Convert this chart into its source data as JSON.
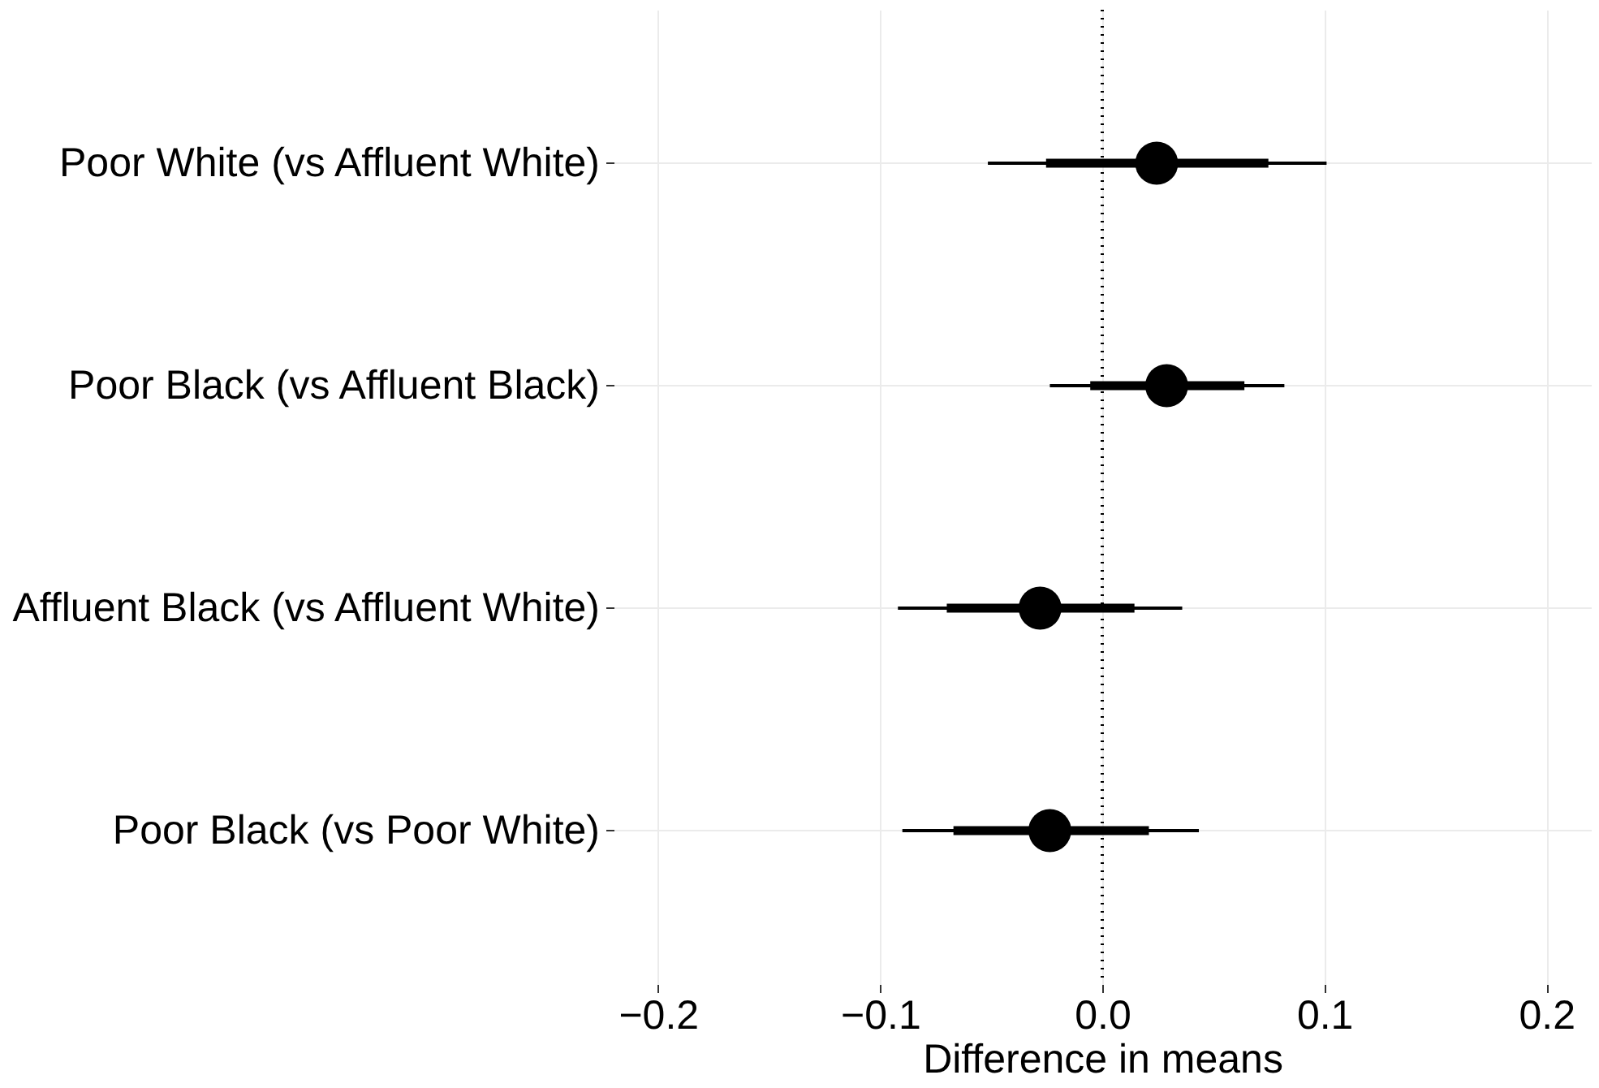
{
  "chart_data": {
    "type": "scatter",
    "orientation": "horizontal",
    "categories": [
      "Poor White (vs Affluent White)",
      "Poor Black (vs Affluent Black)",
      "Affluent Black (vs Affluent White)",
      "Poor Black (vs Poor White)"
    ],
    "series": [
      {
        "type": "bar",
        "color": "#000000",
        "base": [
          -0.0253,
          -0.0054,
          -0.07,
          -0.067
        ],
        "values": [
          0.1001,
          0.0694,
          0.0845,
          0.088
        ]
      },
      {
        "color": "#000000",
        "marker": "circle",
        "values": [
          0.0245,
          0.029,
          -0.028,
          -0.0236
        ],
        "errors": [
          [
            -0.0515,
            0.101
          ],
          [
            -0.0236,
            0.082
          ],
          [
            -0.092,
            0.036
          ],
          [
            -0.09,
            0.0435
          ]
        ]
      }
    ],
    "xlabel": "Difference in means",
    "xlim": [
      -0.22,
      0.22
    ],
    "xticks": [
      {
        "value": -0.2,
        "label": "−0.2"
      },
      {
        "value": -0.1,
        "label": "−0.1"
      },
      {
        "value": 0,
        "label": "0.0"
      },
      0.1,
      0.2
    ],
    "ref_lines": [
      {
        "axis": "x",
        "value": 0,
        "line_style": "dotted",
        "color": "#000000"
      }
    ],
    "grid": true
  }
}
